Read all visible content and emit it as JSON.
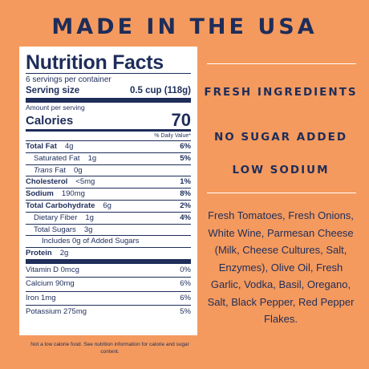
{
  "header": {
    "title": "MADE IN THE USA"
  },
  "label": {
    "title": "Nutrition Facts",
    "servings": "6 servings per container",
    "serving_size_label": "Serving size",
    "serving_size_value": "0.5 cup (118g)",
    "amount_per_serving": "Amount per serving",
    "calories_label": "Calories",
    "calories_value": "70",
    "dv_header": "% Daily Value*",
    "rows": {
      "total_fat": {
        "label": "Total Fat",
        "amount": "4g",
        "dv": "6%"
      },
      "sat_fat": {
        "label": "Saturated Fat",
        "amount": "1g",
        "dv": "5%"
      },
      "trans_fat": {
        "label": "Trans",
        "label_rest": "Fat",
        "amount": "0g"
      },
      "cholesterol": {
        "label": "Cholesterol",
        "amount": "<5mg",
        "dv": "1%"
      },
      "sodium": {
        "label": "Sodium",
        "amount": "190mg",
        "dv": "8%"
      },
      "carbs": {
        "label": "Total Carbohydrate",
        "amount": "6g",
        "dv": "2%"
      },
      "fiber": {
        "label": "Dietary Fiber",
        "amount": "1g",
        "dv": "4%"
      },
      "sugars": {
        "label": "Total Sugars",
        "amount": "3g"
      },
      "added_sugars": {
        "label": "Includes 0g of Added Sugars"
      },
      "protein": {
        "label": "Protein",
        "amount": "2g"
      }
    },
    "vitamins": [
      {
        "label": "Vitamin D 0mcg",
        "dv": "0%"
      },
      {
        "label": "Calcium 90mg",
        "dv": "6%"
      },
      {
        "label": "Iron 1mg",
        "dv": "6%"
      },
      {
        "label": "Potassium 275mg",
        "dv": "5%"
      }
    ],
    "footnote": "Not a low calorie food. See nutrition information for calorie and sugar content."
  },
  "claims": {
    "fresh": "FRESH INGREDIENTS",
    "no_sugar": "NO SUGAR ADDED",
    "low_sodium": "LOW SODIUM"
  },
  "ingredients": "Fresh Tomatoes, Fresh Onions, White Wine, Parmesan Cheese (Milk, Cheese Cultures, Salt, Enzymes), Olive Oil, Fresh Garlic, Vodka, Basil, Oregano, Salt, Black Pepper, Red Pepper Flakes.",
  "colors": {
    "background": "#F49A5E",
    "navy": "#1E2D5A",
    "label_bg": "#FFFFFF"
  }
}
